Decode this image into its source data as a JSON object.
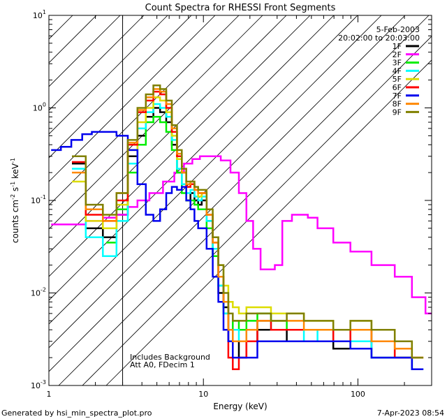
{
  "chart_data": {
    "type": "line",
    "title": "Count Spectra for RHESSI Front Segments",
    "xlabel": "Energy (keV)",
    "ylabel": "counts cm",
    "ylabel_exp1": "-2",
    "ylabel_mid": " s",
    "ylabel_exp2": "-1",
    "ylabel_end": " keV",
    "ylabel_exp3": "-1",
    "xscale": "log",
    "yscale": "log",
    "xlim": [
      1,
      300
    ],
    "ylim": [
      0.001,
      10
    ],
    "x_ticks": [
      {
        "value": 1,
        "label": "1"
      },
      {
        "value": 10,
        "label": "10"
      },
      {
        "value": 100,
        "label": "100"
      }
    ],
    "y_ticks": [
      {
        "value": 0.001,
        "base": "10",
        "exp": "-3"
      },
      {
        "value": 0.01,
        "base": "10",
        "exp": "-2"
      },
      {
        "value": 0.1,
        "base": "10",
        "exp": "-1"
      },
      {
        "value": 1,
        "base": "10",
        "exp": "0"
      },
      {
        "value": 10,
        "base": "10",
        "exp": "1"
      }
    ],
    "hatched_region": [
      1,
      3
    ],
    "date": "5-Feb-2003",
    "time_range": "20:02:00 to 20:03:00",
    "annotation_lines": [
      "Includes Background",
      "Att A0, FDecim 1"
    ],
    "series": [
      {
        "name": "1F",
        "color": "#000000",
        "x": [
          1.5,
          2,
          2.5,
          3,
          3.5,
          4,
          4.5,
          5,
          5.5,
          6,
          6.5,
          7,
          7.5,
          8,
          8.5,
          9,
          9.5,
          10,
          11,
          12,
          13,
          14,
          15,
          16,
          18,
          20,
          25,
          30,
          40,
          50,
          60,
          80,
          100,
          150,
          200,
          250
        ],
        "y": [
          0.25,
          0.05,
          0.04,
          0.07,
          0.3,
          0.5,
          0.8,
          1.0,
          0.9,
          0.7,
          0.4,
          0.2,
          0.15,
          0.1,
          0.12,
          0.1,
          0.09,
          0.1,
          0.06,
          0.025,
          0.01,
          0.007,
          0.003,
          0.003,
          0.002,
          0.003,
          0.004,
          0.004,
          0.003,
          0.003,
          0.003,
          0.0025,
          0.003,
          0.002,
          0.002,
          0.0015
        ]
      },
      {
        "name": "2F",
        "color": "#ff00ff",
        "x": [
          1.1,
          1.5,
          2,
          2.5,
          3,
          3.5,
          4,
          5,
          6,
          7,
          8,
          9,
          10,
          12,
          14,
          16,
          18,
          20,
          22,
          25,
          28,
          30,
          35,
          40,
          45,
          50,
          60,
          80,
          100,
          150,
          200,
          250,
          300
        ],
        "y": [
          0.055,
          0.055,
          0.06,
          0.065,
          0.07,
          0.085,
          0.1,
          0.12,
          0.16,
          0.2,
          0.25,
          0.28,
          0.3,
          0.3,
          0.27,
          0.2,
          0.12,
          0.06,
          0.03,
          0.018,
          0.018,
          0.02,
          0.06,
          0.07,
          0.07,
          0.065,
          0.05,
          0.035,
          0.028,
          0.02,
          0.015,
          0.009,
          0.006
        ]
      },
      {
        "name": "3F",
        "color": "#00ee00",
        "x": [
          2.5,
          3,
          3.5,
          4,
          4.5,
          5,
          5.5,
          6,
          6.5,
          7,
          7.5,
          8,
          8.5,
          9,
          9.5,
          10,
          11,
          12,
          13,
          14,
          15,
          16,
          18,
          20,
          25,
          30,
          40,
          50,
          60,
          80,
          100,
          150,
          200,
          250
        ],
        "y": [
          0.035,
          0.08,
          0.2,
          0.4,
          0.7,
          0.8,
          0.7,
          0.55,
          0.35,
          0.2,
          0.12,
          0.1,
          0.1,
          0.09,
          0.08,
          0.08,
          0.05,
          0.025,
          0.012,
          0.006,
          0.004,
          0.005,
          0.004,
          0.005,
          0.006,
          0.005,
          0.004,
          0.004,
          0.004,
          0.003,
          0.004,
          0.003,
          0.002,
          0.0015
        ]
      },
      {
        "name": "4F",
        "color": "#00ffff",
        "x": [
          1.5,
          2,
          2.5,
          3,
          3.5,
          4,
          4.5,
          5,
          5.5,
          6,
          6.5,
          7,
          7.5,
          8,
          8.5,
          9,
          9.5,
          10,
          11,
          12,
          13,
          14,
          15,
          16,
          18,
          20,
          25,
          30,
          40,
          50,
          60,
          80,
          100,
          150,
          200,
          250
        ],
        "y": [
          0.22,
          0.04,
          0.025,
          0.06,
          0.25,
          0.6,
          0.9,
          1.1,
          1.0,
          0.8,
          0.45,
          0.22,
          0.15,
          0.12,
          0.13,
          0.11,
          0.1,
          0.11,
          0.06,
          0.03,
          0.012,
          0.006,
          0.003,
          0.004,
          0.003,
          0.004,
          0.005,
          0.004,
          0.004,
          0.003,
          0.004,
          0.003,
          0.003,
          0.002,
          0.002,
          0.0015
        ]
      },
      {
        "name": "5F",
        "color": "#dddd00",
        "x": [
          1.5,
          2,
          2.5,
          3,
          3.5,
          4,
          4.5,
          5,
          5.5,
          6,
          6.5,
          7,
          7.5,
          8,
          8.5,
          9,
          9.5,
          10,
          11,
          12,
          13,
          14,
          15,
          16,
          18,
          20,
          25,
          30,
          40,
          50,
          60,
          80,
          100,
          150,
          200,
          250
        ],
        "y": [
          0.16,
          0.06,
          0.05,
          0.09,
          0.35,
          0.7,
          1.0,
          1.3,
          1.2,
          0.9,
          0.5,
          0.28,
          0.2,
          0.15,
          0.15,
          0.13,
          0.11,
          0.12,
          0.07,
          0.04,
          0.02,
          0.012,
          0.008,
          0.007,
          0.006,
          0.007,
          0.007,
          0.006,
          0.006,
          0.005,
          0.005,
          0.004,
          0.005,
          0.004,
          0.003,
          0.002
        ]
      },
      {
        "name": "6F",
        "color": "#ff0000",
        "x": [
          1.5,
          2,
          2.5,
          3,
          3.5,
          4,
          4.5,
          5,
          5.5,
          6,
          6.5,
          7,
          7.5,
          8,
          8.5,
          9,
          9.5,
          10,
          11,
          12,
          13,
          14,
          15,
          16,
          18,
          20,
          25,
          30,
          40,
          50,
          60,
          80,
          100,
          150,
          200,
          250
        ],
        "y": [
          0.26,
          0.07,
          0.06,
          0.1,
          0.4,
          0.9,
          1.2,
          1.5,
          1.4,
          1.0,
          0.55,
          0.3,
          0.2,
          0.14,
          0.15,
          0.13,
          0.12,
          0.12,
          0.07,
          0.035,
          0.015,
          0.008,
          0.002,
          0.0015,
          0.002,
          0.003,
          0.005,
          0.004,
          0.004,
          0.004,
          0.004,
          0.003,
          0.004,
          0.003,
          0.002,
          0.002
        ]
      },
      {
        "name": "7F",
        "color": "#0000ee",
        "x": [
          1.1,
          1.3,
          1.5,
          1.8,
          2,
          2.5,
          3,
          3.5,
          4,
          4.5,
          5,
          5.5,
          6,
          6.5,
          7,
          7.5,
          8,
          8.5,
          9,
          9.5,
          10,
          11,
          12,
          13,
          14,
          15,
          16,
          18,
          20,
          25,
          30,
          40,
          50,
          60,
          80,
          100,
          150,
          200,
          250
        ],
        "y": [
          0.35,
          0.38,
          0.45,
          0.52,
          0.55,
          0.55,
          0.5,
          0.35,
          0.15,
          0.07,
          0.06,
          0.08,
          0.12,
          0.14,
          0.13,
          0.14,
          0.1,
          0.08,
          0.06,
          0.05,
          0.05,
          0.03,
          0.015,
          0.008,
          0.004,
          0.003,
          0.002,
          0.002,
          0.002,
          0.003,
          0.003,
          0.003,
          0.003,
          0.003,
          0.003,
          0.0025,
          0.002,
          0.002,
          0.0015
        ]
      },
      {
        "name": "8F",
        "color": "#ff8800",
        "x": [
          1.5,
          2,
          2.5,
          3,
          3.5,
          4,
          4.5,
          5,
          5.5,
          6,
          6.5,
          7,
          7.5,
          8,
          8.5,
          9,
          9.5,
          10,
          11,
          12,
          13,
          14,
          15,
          16,
          18,
          20,
          25,
          30,
          40,
          50,
          60,
          80,
          100,
          150,
          200,
          250
        ],
        "y": [
          0.2,
          0.08,
          0.06,
          0.12,
          0.42,
          0.95,
          1.3,
          1.6,
          1.5,
          1.1,
          0.6,
          0.32,
          0.2,
          0.15,
          0.16,
          0.13,
          0.12,
          0.12,
          0.07,
          0.035,
          0.015,
          0.008,
          0.004,
          0.003,
          0.003,
          0.004,
          0.005,
          0.005,
          0.005,
          0.004,
          0.004,
          0.004,
          0.004,
          0.003,
          0.0025,
          0.002
        ]
      },
      {
        "name": "9F",
        "color": "#808000",
        "x": [
          1.5,
          2,
          2.5,
          3,
          3.5,
          4,
          4.5,
          5,
          5.5,
          6,
          6.5,
          7,
          7.5,
          8,
          8.5,
          9,
          9.5,
          10,
          11,
          12,
          13,
          14,
          15,
          16,
          18,
          20,
          25,
          30,
          40,
          50,
          60,
          80,
          100,
          150,
          200,
          250
        ],
        "y": [
          0.3,
          0.09,
          0.07,
          0.12,
          0.45,
          1.0,
          1.4,
          1.75,
          1.6,
          1.2,
          0.65,
          0.35,
          0.22,
          0.16,
          0.16,
          0.14,
          0.13,
          0.13,
          0.08,
          0.04,
          0.02,
          0.01,
          0.006,
          0.005,
          0.005,
          0.006,
          0.006,
          0.005,
          0.006,
          0.005,
          0.005,
          0.004,
          0.005,
          0.004,
          0.003,
          0.002
        ]
      }
    ]
  },
  "footer": {
    "left": "Generated by hsi_min_spectra_plot.pro",
    "right": "7-Apr-2023 08:54"
  }
}
